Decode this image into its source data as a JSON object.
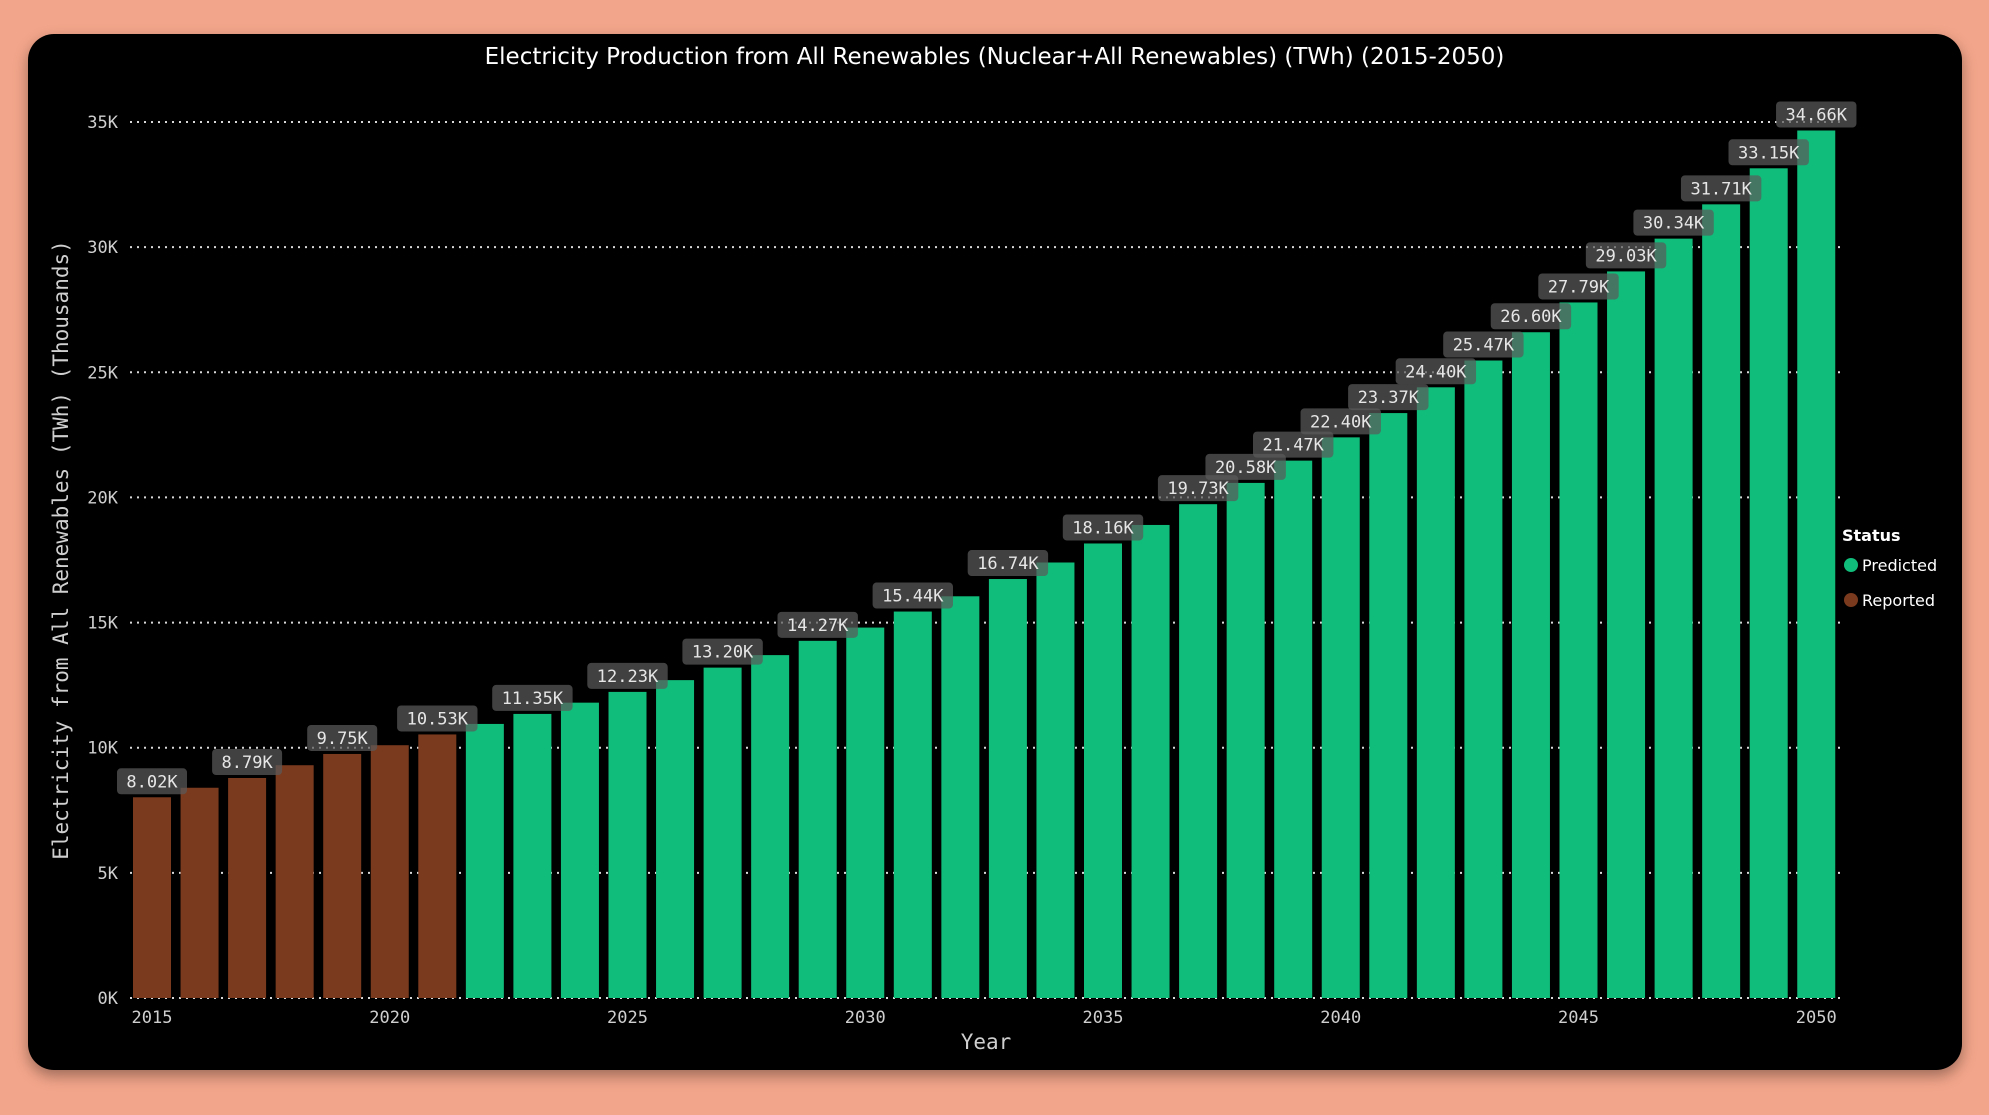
{
  "chart_data": {
    "type": "bar",
    "title": "Electricity Production from All Renewables (Nuclear+All Renewables) (TWh) (2015-2050)",
    "xlabel": "Year",
    "ylabel": "Electricity from All Renewables (TWh) (Thousands)",
    "ylim": [
      0,
      35000
    ],
    "yticks": [
      0,
      5000,
      10000,
      15000,
      20000,
      25000,
      30000,
      35000
    ],
    "ytick_labels": [
      "0K",
      "5K",
      "10K",
      "15K",
      "20K",
      "25K",
      "30K",
      "35K"
    ],
    "xticks": [
      2015,
      2020,
      2025,
      2030,
      2035,
      2040,
      2045,
      2050
    ],
    "xtick_labels": [
      "2015",
      "2020",
      "2025",
      "2030",
      "2035",
      "2040",
      "2045",
      "2050"
    ],
    "grid": true,
    "legend": {
      "title": "Status",
      "position": "right",
      "entries": [
        {
          "name": "Predicted",
          "color": "#10bd7a"
        },
        {
          "name": "Reported",
          "color": "#7a3a1e"
        }
      ]
    },
    "x": [
      2015,
      2016,
      2017,
      2018,
      2019,
      2020,
      2021,
      2022,
      2023,
      2024,
      2025,
      2026,
      2027,
      2028,
      2029,
      2030,
      2031,
      2032,
      2033,
      2034,
      2035,
      2036,
      2037,
      2038,
      2039,
      2040,
      2041,
      2042,
      2043,
      2044,
      2045,
      2046,
      2047,
      2048,
      2049,
      2050
    ],
    "values": [
      8020,
      8400,
      8790,
      9300,
      9750,
      10100,
      10530,
      10950,
      11350,
      11800,
      12230,
      12700,
      13200,
      13700,
      14270,
      14800,
      15440,
      16050,
      16740,
      17400,
      18160,
      18900,
      19730,
      20580,
      21470,
      22400,
      23370,
      24400,
      25470,
      26600,
      27790,
      29030,
      30340,
      31710,
      33150,
      34660
    ],
    "status": [
      "Reported",
      "Reported",
      "Reported",
      "Reported",
      "Reported",
      "Reported",
      "Reported",
      "Predicted",
      "Predicted",
      "Predicted",
      "Predicted",
      "Predicted",
      "Predicted",
      "Predicted",
      "Predicted",
      "Predicted",
      "Predicted",
      "Predicted",
      "Predicted",
      "Predicted",
      "Predicted",
      "Predicted",
      "Predicted",
      "Predicted",
      "Predicted",
      "Predicted",
      "Predicted",
      "Predicted",
      "Predicted",
      "Predicted",
      "Predicted",
      "Predicted",
      "Predicted",
      "Predicted",
      "Predicted",
      "Predicted"
    ],
    "data_labels": [
      {
        "year": 2015,
        "text": "8.02K"
      },
      {
        "year": 2017,
        "text": "8.79K"
      },
      {
        "year": 2019,
        "text": "9.75K"
      },
      {
        "year": 2021,
        "text": "10.53K"
      },
      {
        "year": 2023,
        "text": "11.35K"
      },
      {
        "year": 2025,
        "text": "12.23K"
      },
      {
        "year": 2027,
        "text": "13.20K"
      },
      {
        "year": 2029,
        "text": "14.27K"
      },
      {
        "year": 2031,
        "text": "15.44K"
      },
      {
        "year": 2033,
        "text": "16.74K"
      },
      {
        "year": 2035,
        "text": "18.16K"
      },
      {
        "year": 2037,
        "text": "19.73K"
      },
      {
        "year": 2038,
        "text": "20.58K"
      },
      {
        "year": 2039,
        "text": "21.47K"
      },
      {
        "year": 2040,
        "text": "22.40K"
      },
      {
        "year": 2041,
        "text": "23.37K"
      },
      {
        "year": 2042,
        "text": "24.40K"
      },
      {
        "year": 2043,
        "text": "25.47K"
      },
      {
        "year": 2044,
        "text": "26.60K"
      },
      {
        "year": 2045,
        "text": "27.79K"
      },
      {
        "year": 2046,
        "text": "29.03K"
      },
      {
        "year": 2047,
        "text": "30.34K"
      },
      {
        "year": 2048,
        "text": "31.71K"
      },
      {
        "year": 2049,
        "text": "33.15K"
      },
      {
        "year": 2050,
        "text": "34.66K"
      }
    ]
  }
}
